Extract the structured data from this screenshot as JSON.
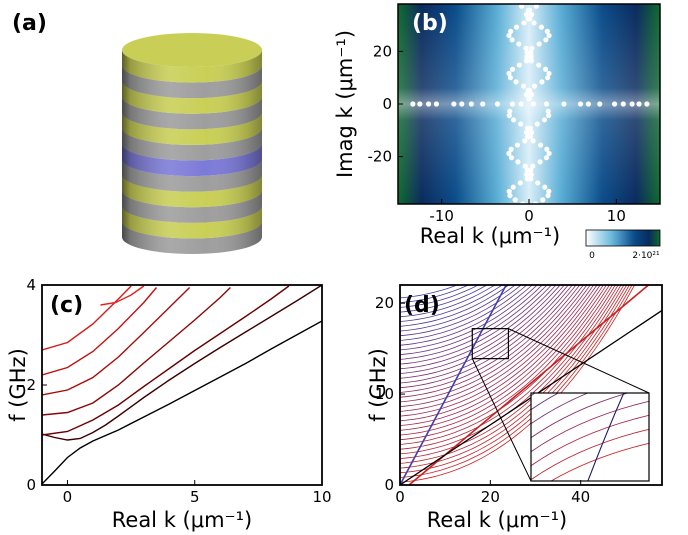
{
  "panel_labels": {
    "a": "(a)",
    "b": "(b)",
    "c": "(c)",
    "d": "(d)"
  },
  "colors": {
    "yellow_layer": "#c9cf56",
    "grey_layer": "#9e9e9e",
    "defect_layer": "#7c7ad8",
    "dot": "#ffffff"
  },
  "chart_data": [
    {
      "id": "b",
      "type": "heatmap",
      "xlabel": "Real k (μm⁻¹)",
      "ylabel": "Imag k (μm⁻¹)",
      "xlim": [
        -15,
        15
      ],
      "ylim": [
        -38,
        38
      ],
      "xticks": [
        -10,
        0,
        10
      ],
      "yticks": [
        -20,
        0,
        20
      ],
      "colorbar": {
        "min_label": "0",
        "max_label": "2·10²¹",
        "colors": [
          "#ffffff",
          "#6ab8dc",
          "#0a4c8a",
          "#0a2a5e",
          "#0e6a2e"
        ]
      },
      "real_roots": [
        -13.3,
        -12.5,
        -11.5,
        -10.6,
        -8.6,
        -7.7,
        -6.6,
        -5.3,
        -3.6,
        -1.9,
        -0.9,
        0.5,
        2.0,
        4.0,
        5.9,
        6.8,
        8.1,
        9.8,
        10.8,
        11.8,
        12.6,
        13.5
      ],
      "imag_root_branches": [
        {
          "center": -1.0,
          "amplitude": 1.3,
          "period": 15
        },
        {
          "center": 1.0,
          "amplitude": 1.3,
          "period": 15
        }
      ],
      "imag_root_range": [
        -38,
        38
      ]
    },
    {
      "id": "c",
      "type": "line",
      "xlabel": "Real k (μm⁻¹)",
      "ylabel": "f (GHz)",
      "xlim": [
        -1,
        10
      ],
      "ylim": [
        0,
        4
      ],
      "xticks": [
        0,
        5,
        10
      ],
      "yticks": [
        0,
        2,
        4
      ],
      "series": [
        {
          "color": "#000000",
          "x": [
            -1,
            -0.5,
            0,
            0.5,
            1,
            2,
            3,
            4,
            5,
            6,
            7,
            8,
            9,
            10
          ],
          "y": [
            0.02,
            0.28,
            0.55,
            0.74,
            0.88,
            1.1,
            1.36,
            1.62,
            1.89,
            2.16,
            2.43,
            2.72,
            3.0,
            3.28
          ]
        },
        {
          "color": "#3a0000",
          "x": [
            -1,
            -0.5,
            0,
            0.5,
            1,
            1.5,
            2,
            3,
            4,
            5,
            6,
            7,
            8,
            9,
            10
          ],
          "y": [
            1.02,
            0.95,
            0.9,
            0.93,
            1.05,
            1.2,
            1.38,
            1.75,
            2.1,
            2.43,
            2.75,
            3.06,
            3.37,
            3.68,
            4.0
          ]
        },
        {
          "color": "#6a0000",
          "x": [
            -1,
            0,
            1,
            2,
            3,
            4,
            5,
            6,
            7,
            8,
            8.7
          ],
          "y": [
            1.0,
            1.07,
            1.3,
            1.6,
            1.97,
            2.33,
            2.69,
            3.03,
            3.37,
            3.72,
            3.98
          ]
        },
        {
          "color": "#8a0505",
          "x": [
            -1,
            0,
            1,
            2,
            3,
            4,
            5,
            6,
            6.4
          ],
          "y": [
            1.4,
            1.45,
            1.64,
            2.0,
            2.44,
            2.87,
            3.3,
            3.75,
            3.95
          ]
        },
        {
          "color": "#a80a0a",
          "x": [
            -1,
            0,
            1,
            2,
            3,
            4,
            4.8
          ],
          "y": [
            1.8,
            1.9,
            2.15,
            2.56,
            3.05,
            3.55,
            3.95
          ]
        },
        {
          "color": "#c21010",
          "x": [
            -1,
            0,
            1,
            2,
            3,
            3.5
          ],
          "y": [
            2.2,
            2.35,
            2.67,
            3.13,
            3.65,
            3.95
          ]
        },
        {
          "color": "#d81818",
          "x": [
            -1,
            0,
            1,
            2,
            2.5
          ],
          "y": [
            2.7,
            2.85,
            3.22,
            3.72,
            3.98
          ]
        },
        {
          "color": "#e82020",
          "x": [
            1.3,
            1.9,
            2.5,
            3.0
          ],
          "y": [
            3.6,
            3.65,
            3.8,
            3.98
          ]
        }
      ]
    },
    {
      "id": "d",
      "type": "line",
      "xlabel": "Real k (μm⁻¹)",
      "ylabel": "f (GHz)",
      "xlim": [
        0,
        58
      ],
      "ylim": [
        0,
        22
      ],
      "xticks": [
        0,
        20,
        40
      ],
      "yticks": [
        0,
        10,
        20
      ],
      "line_count": 40,
      "fundamental_line": {
        "x": [
          0,
          58
        ],
        "y": [
          0,
          19.2
        ]
      },
      "red_wedge": {
        "start": [
          2,
          0
        ],
        "end": [
          55,
          22
        ]
      },
      "blue_wedge": {
        "start": [
          0,
          0
        ],
        "end": [
          23.5,
          22
        ]
      },
      "zoom_box": {
        "x": [
          16,
          24
        ],
        "y": [
          13.9,
          17.2
        ]
      }
    }
  ]
}
